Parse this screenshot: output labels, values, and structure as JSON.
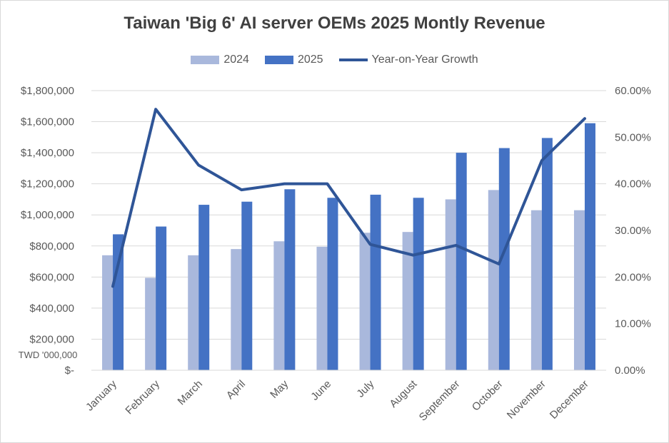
{
  "chart_data": {
    "type": "bar",
    "title": "Taiwan 'Big 6' AI server OEMs 2025 Montly Revenue",
    "categories": [
      "January",
      "February",
      "March",
      "April",
      "May",
      "June",
      "July",
      "August",
      "September",
      "October",
      "November",
      "December"
    ],
    "series": [
      {
        "name": "2024",
        "type": "bar",
        "axis": "left",
        "color": "#a9b8dc",
        "values": [
          740000,
          595000,
          740000,
          780000,
          830000,
          795000,
          885000,
          890000,
          1100000,
          1160000,
          1030000,
          1030000
        ]
      },
      {
        "name": "2025",
        "type": "bar",
        "axis": "left",
        "color": "#4472c4",
        "values": [
          875000,
          925000,
          1065000,
          1085000,
          1165000,
          1110000,
          1130000,
          1110000,
          1400000,
          1430000,
          1495000,
          1590000
        ]
      },
      {
        "name": "Year-on-Year Growth",
        "type": "line",
        "axis": "right",
        "color": "#2f5597",
        "values": [
          0.18,
          0.56,
          0.44,
          0.387,
          0.4,
          0.4,
          0.27,
          0.247,
          0.268,
          0.228,
          0.45,
          0.54
        ]
      }
    ],
    "y_left": {
      "min": 0,
      "max": 1800000,
      "step": 200000,
      "tick_labels": [
        "$-",
        "$200,000",
        "$400,000",
        "$600,000",
        "$800,000",
        "$1,000,000",
        "$1,200,000",
        "$1,400,000",
        "$1,600,000",
        "$1,800,000"
      ],
      "unit_label": "TWD '000,000"
    },
    "y_right": {
      "min": 0,
      "max": 0.6,
      "step": 0.1,
      "tick_labels": [
        "0.00%",
        "10.00%",
        "20.00%",
        "30.00%",
        "40.00%",
        "50.00%",
        "60.00%"
      ]
    },
    "grid": true,
    "legend_position": "top"
  }
}
